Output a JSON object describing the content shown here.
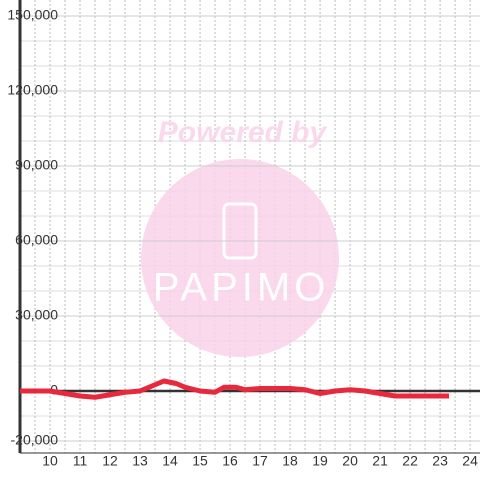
{
  "chart_data": {
    "type": "line",
    "watermark": {
      "text": "Powered by",
      "logo": "PAPIMO"
    },
    "x": [
      9,
      9.5,
      10,
      10.5,
      11,
      11.5,
      12,
      12.5,
      13,
      13.5,
      13.8,
      14.2,
      14.5,
      15,
      15.5,
      15.8,
      16.2,
      16.5,
      17,
      17.5,
      18,
      18.5,
      19,
      19.5,
      20,
      20.5,
      21,
      21.5,
      22,
      22.5,
      23,
      23.3
    ],
    "series": [
      {
        "color": "#e8283c",
        "values": [
          0,
          0,
          0,
          -1000,
          -2000,
          -2500,
          -1500,
          -500,
          0,
          2500,
          4000,
          3000,
          1500,
          0,
          -500,
          1500,
          1500,
          500,
          1000,
          1000,
          1000,
          500,
          -1000,
          0,
          500,
          0,
          -1000,
          -2000,
          -2000,
          -2000,
          -2000,
          -2000
        ]
      }
    ],
    "xlim": [
      9,
      24.33
    ],
    "xticks": [
      10,
      11,
      12,
      13,
      14,
      15,
      16,
      17,
      18,
      19,
      20,
      21,
      22,
      23,
      24
    ],
    "x_minor_ticks": [
      9.5,
      10,
      10.5,
      11,
      11.5,
      12,
      12.5,
      13,
      13.5,
      14,
      14.5,
      15,
      15.5,
      16,
      16.5,
      17,
      17.5,
      18,
      18.5,
      19,
      19.5,
      20,
      20.5,
      21,
      21.5,
      22,
      22.5,
      23,
      23.5,
      24
    ],
    "ylim": [
      -20000,
      150000
    ],
    "yticks": [
      {
        "value": -20000,
        "label": "-20,000"
      },
      0,
      {
        "value": 30000,
        "label": "30,000"
      },
      {
        "value": 60000,
        "label": "60,000"
      },
      {
        "value": 90000,
        "label": "90,000"
      },
      {
        "value": 120000,
        "label": "120,000"
      },
      {
        "value": 150000,
        "label": "150,000"
      }
    ],
    "y_minor_ticks": [
      -10000,
      10000,
      20000,
      40000,
      50000,
      70000,
      80000,
      100000,
      110000,
      130000,
      140000
    ],
    "grid": true
  }
}
